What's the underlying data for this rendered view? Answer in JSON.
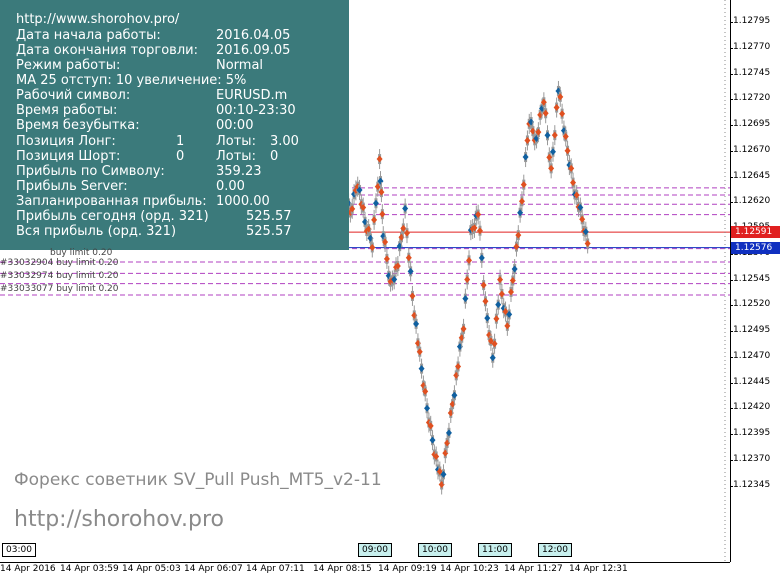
{
  "colors": {
    "panel_bg": "#3b7a7b",
    "bid_line": "#e02020",
    "ask_line": "#1030c0",
    "order_level": "#b040c0",
    "bull_marker": "#e05020",
    "bear_marker": "#1060a0",
    "candle": "#999999"
  },
  "panel": {
    "url": "http://www.shorohov.pro/",
    "rows": [
      {
        "label": "Дата начала работы:",
        "value": "2016.04.05"
      },
      {
        "label": "Дата окончания торговли:",
        "value": "2016.09.05"
      },
      {
        "label": "Режим работы:",
        "value": "Normal"
      },
      {
        "label": "MA 25 отступ: 10 увеличение: 5%",
        "value": ""
      },
      {
        "label": "Рабочий символ:",
        "value": "EURUSD.m"
      },
      {
        "label": "Время работы:",
        "value": "00:10-23:30"
      },
      {
        "label": "Время безубытка:",
        "value": "00:00"
      }
    ],
    "long": {
      "label": "Позиция Лонг:",
      "count": "1",
      "lots_label": "Лоты:",
      "lots": "3.00"
    },
    "short": {
      "label": "Позиция Шорт:",
      "count": "0",
      "lots_label": "Лоты:",
      "lots": "0"
    },
    "rows2": [
      {
        "label": "Прибыль по Символу:",
        "value": "359.23"
      },
      {
        "label": "Прибыль Server:",
        "value": "0.00"
      },
      {
        "label": "Запланированная прибыль:",
        "value": "1000.00"
      },
      {
        "label": "Прибыль сегодня (орд. 321)",
        "value": "525.57"
      },
      {
        "label": "Вся прибыль (орд. 321)",
        "value": "525.57"
      }
    ]
  },
  "orders": [
    "#33032904 buy limit 0.20",
    "#33032974 buy limit 0.20",
    "#33033077 buy limit 0.20"
  ],
  "order_partial": "buy limit 0.20",
  "price_axis": [
    "1.12795",
    "1.12770",
    "1.12745",
    "1.12720",
    "1.12695",
    "1.12670",
    "1.12645",
    "1.12620",
    "1.12595",
    "1.12570",
    "1.12545",
    "1.12520",
    "1.12495",
    "1.12470",
    "1.12445",
    "1.12420",
    "1.12395",
    "1.12370",
    "1.12345"
  ],
  "bid_price": "1.12591",
  "ask_price": "1.12576",
  "time_axis": [
    "14 Apr 2016",
    "14 Apr 03:59",
    "14 Apr 05:03",
    "14 Apr 06:07",
    "14 Apr 07:11",
    "14 Apr 08:15",
    "14 Apr 09:19",
    "14 Apr 10:23",
    "14 Apr 11:27",
    "14 Apr 12:31"
  ],
  "sessions": [
    "03:00",
    "09:00",
    "10:00",
    "11:00",
    "12:00"
  ],
  "watermark": {
    "line1": "Форекс советник SV_Pull Push_MT5_v2-11",
    "line2": "http://shorohov.pro"
  },
  "chart_data": {
    "type": "line",
    "x_range": [
      "14 Apr 2016",
      "14 Apr 12:31"
    ],
    "y_range": [
      1.12345,
      1.12795
    ],
    "bid": 1.12591,
    "ask": 1.12576,
    "order_levels": [
      1.12634,
      1.12627,
      1.12618,
      1.12608,
      1.12575,
      1.12562,
      1.12551,
      1.12541,
      1.1253
    ],
    "price_path": [
      {
        "x": 0.47,
        "y": 1.1263
      },
      {
        "x": 0.48,
        "y": 1.1261
      },
      {
        "x": 0.49,
        "y": 1.1264
      },
      {
        "x": 0.5,
        "y": 1.126
      },
      {
        "x": 0.51,
        "y": 1.1258
      },
      {
        "x": 0.52,
        "y": 1.1266
      },
      {
        "x": 0.525,
        "y": 1.1259
      },
      {
        "x": 0.535,
        "y": 1.1254
      },
      {
        "x": 0.545,
        "y": 1.1256
      },
      {
        "x": 0.555,
        "y": 1.1261
      },
      {
        "x": 0.565,
        "y": 1.1253
      },
      {
        "x": 0.575,
        "y": 1.1247
      },
      {
        "x": 0.585,
        "y": 1.1242
      },
      {
        "x": 0.595,
        "y": 1.1238
      },
      {
        "x": 0.605,
        "y": 1.12345
      },
      {
        "x": 0.615,
        "y": 1.124
      },
      {
        "x": 0.625,
        "y": 1.1245
      },
      {
        "x": 0.635,
        "y": 1.125
      },
      {
        "x": 0.645,
        "y": 1.1259
      },
      {
        "x": 0.655,
        "y": 1.1261
      },
      {
        "x": 0.665,
        "y": 1.1252
      },
      {
        "x": 0.675,
        "y": 1.1247
      },
      {
        "x": 0.685,
        "y": 1.1254
      },
      {
        "x": 0.695,
        "y": 1.125
      },
      {
        "x": 0.705,
        "y": 1.1256
      },
      {
        "x": 0.715,
        "y": 1.1262
      },
      {
        "x": 0.725,
        "y": 1.127
      },
      {
        "x": 0.735,
        "y": 1.1268
      },
      {
        "x": 0.745,
        "y": 1.1272
      },
      {
        "x": 0.755,
        "y": 1.1265
      },
      {
        "x": 0.765,
        "y": 1.1273
      },
      {
        "x": 0.775,
        "y": 1.1268
      },
      {
        "x": 0.785,
        "y": 1.1264
      },
      {
        "x": 0.795,
        "y": 1.1261
      },
      {
        "x": 0.805,
        "y": 1.1258
      }
    ]
  }
}
